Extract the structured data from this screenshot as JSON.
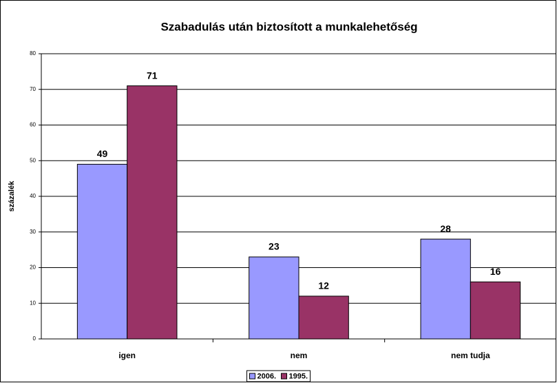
{
  "chart_data": {
    "type": "bar",
    "title": "Szabadulás után biztosított a munkalehetőség",
    "ylabel": "százalék",
    "categories": [
      "igen",
      "nem",
      "nem tudja"
    ],
    "series": [
      {
        "name": "2006.",
        "color": "#9999ff",
        "values": [
          49,
          23,
          28
        ]
      },
      {
        "name": "1995.",
        "color": "#993366",
        "values": [
          71,
          12,
          16
        ]
      }
    ],
    "ylim": [
      0,
      80
    ],
    "yticks": [
      0,
      10,
      20,
      30,
      40,
      50,
      60,
      70,
      80
    ],
    "grid": true,
    "legend": "bottom"
  }
}
